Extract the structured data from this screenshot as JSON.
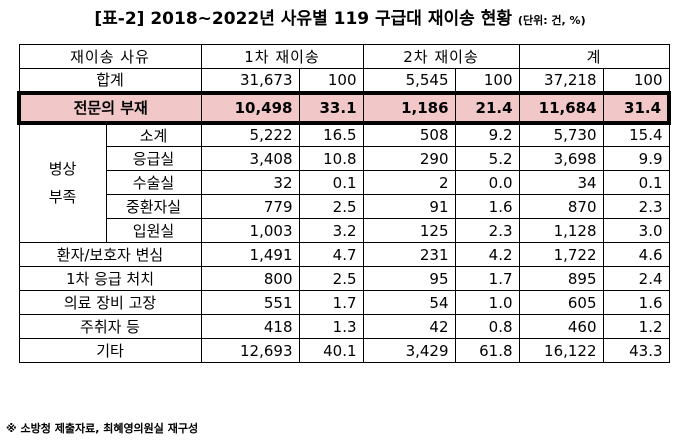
{
  "title": {
    "main": "[표-2] 2018~2022년 사유별 119 구급대 재이송 현황",
    "unit": "(단위: 건, %)"
  },
  "header": {
    "reason": "재이송 사유",
    "first": "1차 재이송",
    "second": "2차 재이송",
    "total": "계"
  },
  "rows": {
    "total": {
      "label": "합계",
      "v": [
        "31,673",
        "100",
        "5,545",
        "100",
        "37,218",
        "100"
      ]
    },
    "specialist": {
      "label": "전문의 부재",
      "v": [
        "10,498",
        "33.1",
        "1,186",
        "21.4",
        "11,684",
        "31.4"
      ]
    },
    "bed_group": "병상\n부족",
    "bed_subtotal": {
      "label": "소계",
      "v": [
        "5,222",
        "16.5",
        "508",
        "9.2",
        "5,730",
        "15.4"
      ]
    },
    "bed_er": {
      "label": "응급실",
      "v": [
        "3,408",
        "10.8",
        "290",
        "5.2",
        "3,698",
        "9.9"
      ]
    },
    "bed_or": {
      "label": "수술실",
      "v": [
        "32",
        "0.1",
        "2",
        "0.0",
        "34",
        "0.1"
      ]
    },
    "bed_icu": {
      "label": "중환자실",
      "v": [
        "779",
        "2.5",
        "91",
        "1.6",
        "870",
        "2.3"
      ]
    },
    "bed_ward": {
      "label": "입원실",
      "v": [
        "1,003",
        "3.2",
        "125",
        "2.3",
        "1,128",
        "3.0"
      ]
    },
    "mind": {
      "label": "환자/보호자 변심",
      "v": [
        "1,491",
        "4.7",
        "231",
        "4.2",
        "1,722",
        "4.6"
      ]
    },
    "first_treat": {
      "label": "1차 응급 처치",
      "v": [
        "800",
        "2.5",
        "95",
        "1.7",
        "895",
        "2.4"
      ]
    },
    "equip": {
      "label": "의료 장비 고장",
      "v": [
        "551",
        "1.7",
        "54",
        "1.0",
        "605",
        "1.6"
      ]
    },
    "drunk": {
      "label": "주취자 등",
      "v": [
        "418",
        "1.3",
        "42",
        "0.8",
        "460",
        "1.2"
      ]
    },
    "other": {
      "label": "기타",
      "v": [
        "12,693",
        "40.1",
        "3,429",
        "61.8",
        "16,122",
        "43.3"
      ]
    }
  },
  "note": "※ 소방청 제출자료, 최혜영의원실 재구성"
}
